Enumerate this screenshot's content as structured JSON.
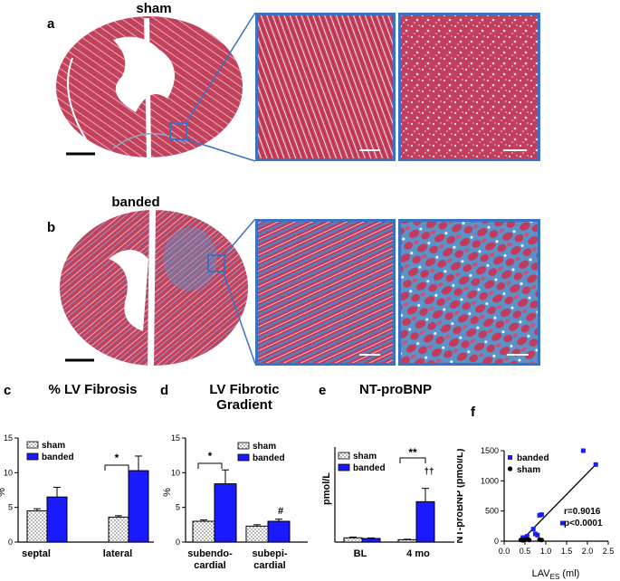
{
  "figure": {
    "row_a": {
      "letter": "a",
      "title": "sham"
    },
    "row_b": {
      "letter": "b",
      "title": "banded"
    },
    "colors": {
      "tissue_red": "#c83c5a",
      "fibrosis_blue": "#4a86c0",
      "frame_blue": "#3a72c2",
      "bar_banded": "#1a1aff"
    }
  },
  "charts": {
    "c": {
      "letter": "c",
      "title": "% LV Fibrosis",
      "legend": [
        "sham",
        "banded"
      ],
      "star": "*",
      "ylabel": "%",
      "chart_data": {
        "type": "bar",
        "categories": [
          "septal",
          "lateral"
        ],
        "series": [
          {
            "name": "sham",
            "values": [
              4.5,
              3.6
            ],
            "errors": [
              0.3,
              0.2
            ]
          },
          {
            "name": "banded",
            "values": [
              6.5,
              10.3
            ],
            "errors": [
              1.4,
              2.1
            ]
          }
        ],
        "ylim": [
          0,
          15
        ],
        "yticks": [
          "0",
          "5",
          "10",
          "15"
        ]
      }
    },
    "d": {
      "letter": "d",
      "title_line1": "LV Fibrotic",
      "title_line2": "Gradient",
      "legend": [
        "sham",
        "banded"
      ],
      "star": "*",
      "hash": "#",
      "ylabel": "%",
      "cat1_l1": "subendo-",
      "cat1_l2": "cardial",
      "cat2_l1": "subepi-",
      "cat2_l2": "cardial",
      "chart_data": {
        "type": "bar",
        "categories": [
          "subendo-cardial",
          "subepi-cardial"
        ],
        "series": [
          {
            "name": "sham",
            "values": [
              3.0,
              2.3
            ],
            "errors": [
              0.2,
              0.2
            ]
          },
          {
            "name": "banded",
            "values": [
              8.4,
              3.0
            ],
            "errors": [
              2.0,
              0.3
            ]
          }
        ],
        "ylim": [
          0,
          15
        ],
        "yticks": [
          "0",
          "5",
          "10",
          "15"
        ]
      }
    },
    "e": {
      "letter": "e",
      "title": "NT-proBNP",
      "legend": [
        "sham",
        "banded"
      ],
      "stars": "**",
      "daggers": "††",
      "ylabel": "pmol/L",
      "chart_data": {
        "type": "bar",
        "categories": [
          "BL",
          "4 mo"
        ],
        "series": [
          {
            "name": "sham",
            "values": [
              45,
              25
            ],
            "errors": [
              8,
              5
            ]
          },
          {
            "name": "banded",
            "values": [
              38,
              425
            ],
            "errors": [
              6,
              140
            ]
          }
        ],
        "ylim": [
          0,
          1000
        ]
      }
    },
    "f": {
      "letter": "f",
      "legend": [
        "banded",
        "sham"
      ],
      "ylabel": "NT-proBNP (pmol/L)",
      "xlabel_main": "LAV",
      "xlabel_sub": "ES",
      "xlabel_unit": " (ml)",
      "r_text": "r=0.9016",
      "p_text": "p<0.0001",
      "chart_data": {
        "type": "scatter",
        "series": [
          {
            "name": "banded",
            "points": [
              [
                1.9,
                1500
              ],
              [
                2.2,
                1270
              ],
              [
                0.85,
                430
              ],
              [
                0.9,
                440
              ],
              [
                0.8,
                100
              ],
              [
                0.75,
                120
              ],
              [
                1.4,
                300
              ],
              [
                0.7,
                200
              ],
              [
                0.55,
                80
              ],
              [
                0.5,
                30
              ],
              [
                0.45,
                60
              ]
            ]
          },
          {
            "name": "sham",
            "points": [
              [
                0.4,
                20
              ],
              [
                0.5,
                25
              ],
              [
                0.45,
                15
              ],
              [
                0.55,
                30
              ],
              [
                0.6,
                20
              ],
              [
                0.85,
                25
              ],
              [
                0.9,
                20
              ]
            ]
          }
        ],
        "fit_line": [
          [
            0.4,
            0
          ],
          [
            2.2,
            1270
          ]
        ],
        "xlim": [
          0.0,
          2.5
        ],
        "ylim": [
          0,
          1500
        ],
        "xticks": [
          "0.0",
          "0.5",
          "1.0",
          "1.5",
          "2.0",
          "2.5"
        ],
        "yticks": [
          "0",
          "500",
          "1000",
          "1500"
        ]
      }
    }
  }
}
